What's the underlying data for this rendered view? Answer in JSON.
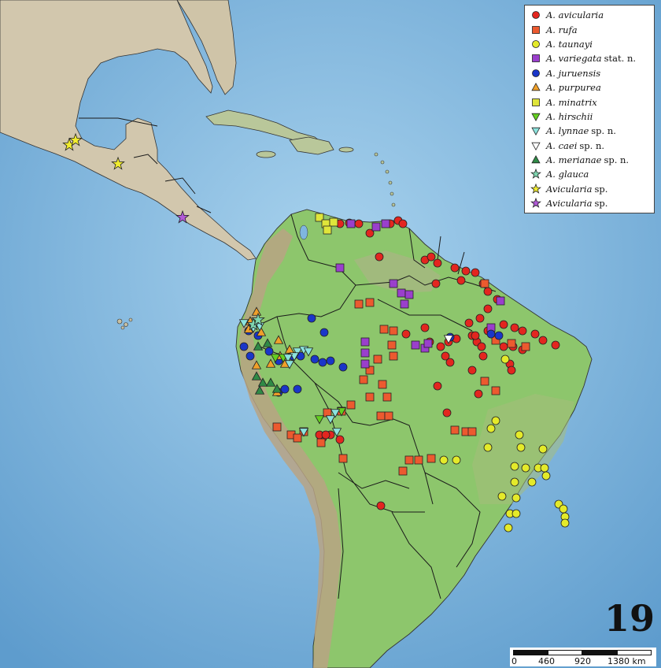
{
  "figure_number": "19",
  "legend": [
    {
      "name": "A. avicularia",
      "suffix": "",
      "marker": "circle",
      "color": "#e3261f"
    },
    {
      "name": "A. rufa",
      "suffix": "",
      "marker": "square",
      "color": "#ec5a2f"
    },
    {
      "name": "A. taunayi",
      "suffix": "",
      "marker": "circle",
      "color": "#e4ea2a"
    },
    {
      "name": "A. variegata",
      "suffix": "stat. n.",
      "marker": "square",
      "color": "#9a3fcc"
    },
    {
      "name": "A. juruensis",
      "suffix": "",
      "marker": "circle",
      "color": "#1a36c9"
    },
    {
      "name": "A. purpurea",
      "suffix": "",
      "marker": "triangle-up",
      "color": "#f0a02a"
    },
    {
      "name": "A. minatrix",
      "suffix": "",
      "marker": "square",
      "color": "#dfe53a"
    },
    {
      "name": "A. hirschii",
      "suffix": "",
      "marker": "triangle-down",
      "color": "#63cf1f"
    },
    {
      "name": "A. lynnae",
      "suffix": "sp. n.",
      "marker": "triangle-down",
      "color": "#8ce3dd"
    },
    {
      "name": "A. caei",
      "suffix": "sp. n.",
      "marker": "triangle-down",
      "color": "#ffffff"
    },
    {
      "name": "A. merianae",
      "suffix": "sp. n.",
      "marker": "triangle-up",
      "color": "#2f8a46"
    },
    {
      "name": "A. glauca",
      "suffix": "",
      "marker": "star",
      "color": "#7fd6b0"
    },
    {
      "name": "Avicularia",
      "suffix": "sp.",
      "marker": "star",
      "color": "#f1ec2e"
    },
    {
      "name": "Avicularia",
      "suffix": "sp.",
      "marker": "star",
      "color": "#b25ad8"
    }
  ],
  "scale_bar": {
    "labels": [
      "0",
      "460",
      "920",
      "1380 km"
    ]
  },
  "colors": {
    "ocean": "#7fb6df",
    "land": "#8cc56a",
    "mountains": "#b09a7a",
    "land_north": "#d7cdb6",
    "border": "#1a1a1a"
  }
}
